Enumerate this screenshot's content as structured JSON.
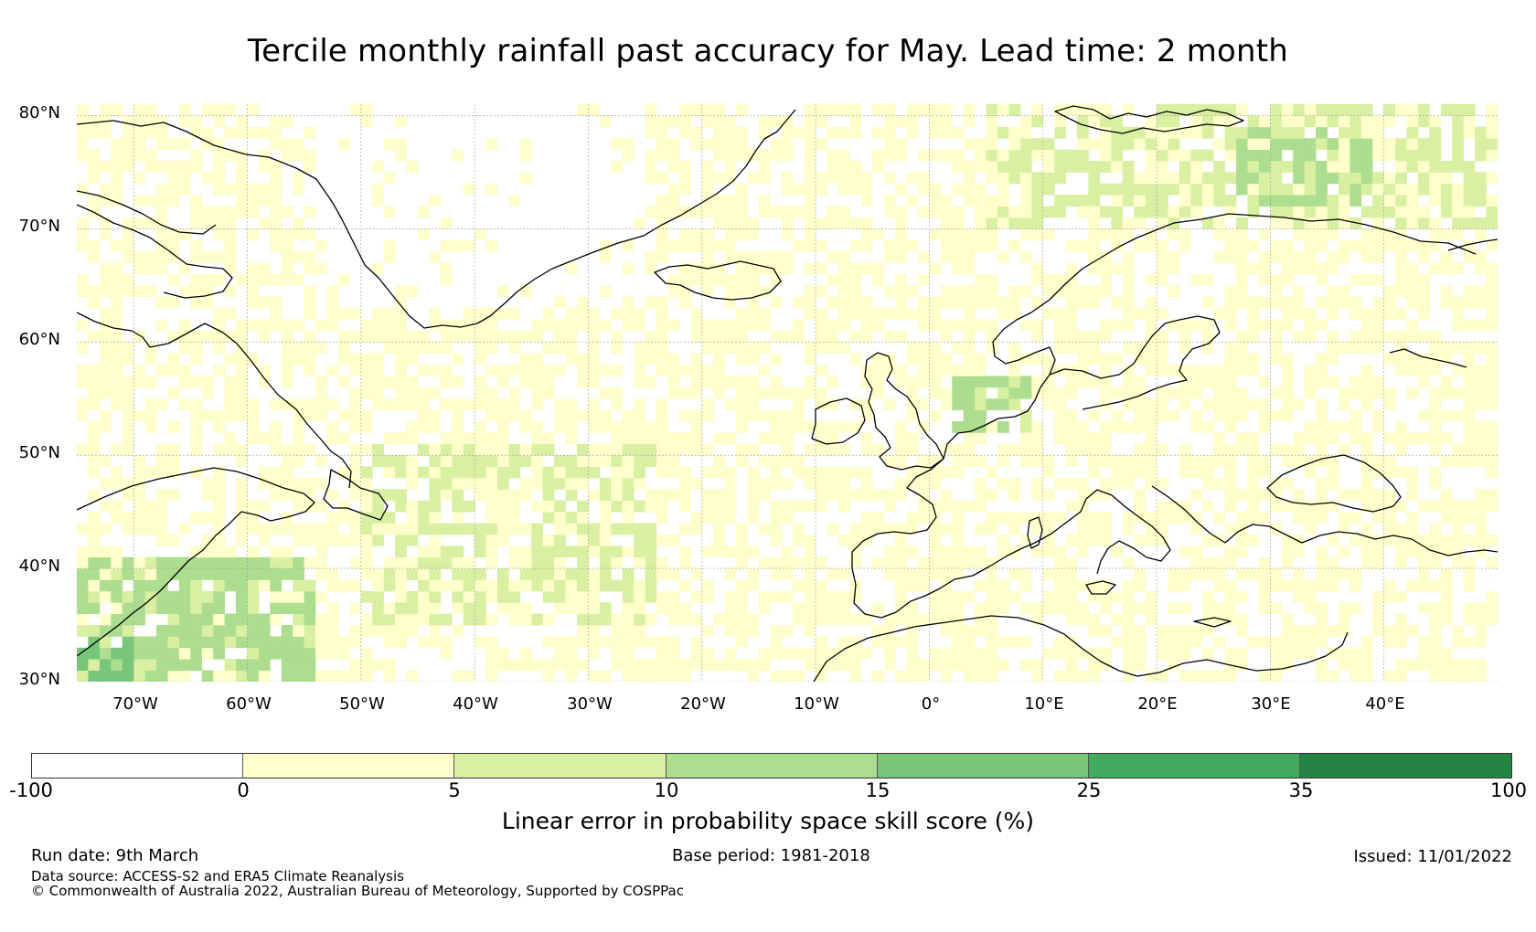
{
  "title": "Tercile monthly rainfall past accuracy for May. Lead time: 2 month",
  "map": {
    "extent": {
      "lon_min": -75,
      "lon_max": 50,
      "lat_min": 30,
      "lat_max": 81
    },
    "lat_labels": [
      {
        "value": 80,
        "text": "80°N"
      },
      {
        "value": 70,
        "text": "70°N"
      },
      {
        "value": 60,
        "text": "60°N"
      },
      {
        "value": 50,
        "text": "50°N"
      },
      {
        "value": 40,
        "text": "40°N"
      },
      {
        "value": 30,
        "text": "30°N"
      }
    ],
    "lon_labels": [
      {
        "value": -70,
        "text": "70°W"
      },
      {
        "value": -60,
        "text": "60°W"
      },
      {
        "value": -50,
        "text": "50°W"
      },
      {
        "value": -40,
        "text": "40°W"
      },
      {
        "value": -30,
        "text": "30°W"
      },
      {
        "value": -20,
        "text": "20°W"
      },
      {
        "value": -10,
        "text": "10°W"
      },
      {
        "value": 0,
        "text": "0°"
      },
      {
        "value": 10,
        "text": "10°E"
      },
      {
        "value": 20,
        "text": "20°E"
      },
      {
        "value": 30,
        "text": "30°E"
      },
      {
        "value": 40,
        "text": "40°E"
      }
    ],
    "field_regions": [
      {
        "name": "west-atlantic-low",
        "lon": [
          -75,
          -55
        ],
        "lat": [
          30,
          40
        ],
        "level": 2
      },
      {
        "name": "barents-sea",
        "lon": [
          27,
          38
        ],
        "lat": [
          72,
          78
        ],
        "level": 2
      },
      {
        "name": "north-sea-east",
        "lon": [
          2,
          8
        ],
        "lat": [
          52,
          56
        ],
        "level": 2
      },
      {
        "name": "central-atlantic",
        "lon": [
          -50,
          -25
        ],
        "lat": [
          35,
          50
        ],
        "level": 1
      },
      {
        "name": "svalbard-area",
        "lon": [
          5,
          50
        ],
        "lat": [
          70,
          81
        ],
        "level": 1
      }
    ]
  },
  "colorbar": {
    "ticks": [
      "-100",
      "0",
      "5",
      "10",
      "15",
      "25",
      "35",
      "100"
    ],
    "colors": [
      "#ffffff",
      "#ffffcc",
      "#d9f0a3",
      "#addd8e",
      "#78c679",
      "#41ab5d",
      "#238443"
    ],
    "label": "Linear error in probability space skill score (%)"
  },
  "footer": {
    "run_date": "Run date: 9th March",
    "base_period": "Base period: 1981-2018",
    "issued": "Issued: 11/01/2022",
    "data_source": "Data source: ACCESS-S2 and ERA5 Climate Reanalysis",
    "copyright": "© Commonwealth of Australia 2022, Australian Bureau of Meteorology, Supported by COSPPac"
  }
}
